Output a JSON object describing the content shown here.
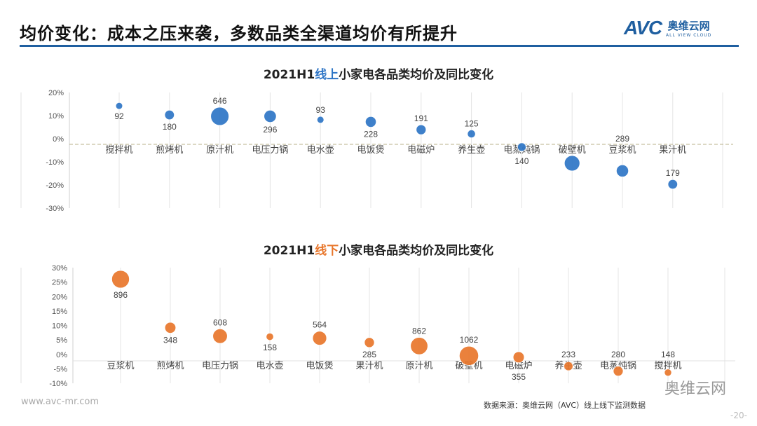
{
  "header": {
    "title": "均价变化：成本之压来袭，多数品类全渠道均价有所提升",
    "logo_mark": "AVC",
    "logo_cn": "奥维云网",
    "logo_en": "ALL VIEW CLOUD"
  },
  "colors": {
    "brand": "#1f5fa0",
    "online": "#2e75c6",
    "offline": "#e8762b"
  },
  "chart_data": [
    {
      "type": "bubble",
      "title_prefix": "2021H1",
      "title_highlight": "线上",
      "title_suffix": "小家电各品类均价及同比变化",
      "ylim": [
        -30,
        20
      ],
      "yticks": [
        "20%",
        "10%",
        "0%",
        "-10%",
        "-20%",
        "-30%"
      ],
      "ytick_values": [
        20,
        10,
        0,
        -10,
        -20,
        -30
      ],
      "grid": true,
      "color": "#2e75c6",
      "points": [
        {
          "category": "搅拌机",
          "yoy": 14.2,
          "price": 92,
          "label": "92",
          "label_pos": "below"
        },
        {
          "category": "煎烤机",
          "yoy": 10.3,
          "price": 180,
          "label": "180",
          "label_pos": "below"
        },
        {
          "category": "原汁机",
          "yoy": 9.7,
          "price": 646,
          "label": "646",
          "label_pos": "above"
        },
        {
          "category": "电压力锅",
          "yoy": 9.7,
          "price": 296,
          "label": "296",
          "label_pos": "below"
        },
        {
          "category": "电水壶",
          "yoy": 8.2,
          "price": 93,
          "label": "93",
          "label_pos": "above"
        },
        {
          "category": "电饭煲",
          "yoy": 7.3,
          "price": 228,
          "label": "228",
          "label_pos": "below"
        },
        {
          "category": "电磁炉",
          "yoy": 3.9,
          "price": 191,
          "label": "191",
          "label_pos": "above"
        },
        {
          "category": "养生壶",
          "yoy": 2.1,
          "price": 125,
          "label": "125",
          "label_pos": "above"
        },
        {
          "category": "电蒸炖锅",
          "yoy": -3.6,
          "price": 140,
          "label": "140",
          "label_pos": "below"
        },
        {
          "category": "破壁机",
          "yoy": -10.6,
          "price": null,
          "label": "",
          "label_pos": "above"
        },
        {
          "category": "豆浆机",
          "yoy": -13.9,
          "price": 289,
          "label": "289",
          "label_pos": "above"
        },
        {
          "category": "果汁机",
          "yoy": -19.7,
          "price": 179,
          "label": "179",
          "label_pos": "above"
        }
      ]
    },
    {
      "type": "bubble",
      "title_prefix": "2021H1",
      "title_highlight": "线下",
      "title_suffix": "小家电各品类均价及同比变化",
      "ylim": [
        -10,
        30
      ],
      "yticks": [
        "30%",
        "25%",
        "20%",
        "15%",
        "10%",
        "5%",
        "0%",
        "-5%",
        "-10%"
      ],
      "ytick_values": [
        30,
        25,
        20,
        15,
        10,
        5,
        0,
        -5,
        -10
      ],
      "grid": true,
      "color": "#e8762b",
      "points": [
        {
          "category": "豆浆机",
          "yoy": 26.0,
          "price": 896,
          "label": "896",
          "label_pos": "below"
        },
        {
          "category": "煎烤机",
          "yoy": 9.2,
          "price": 348,
          "label": "348",
          "label_pos": "below"
        },
        {
          "category": "电压力锅",
          "yoy": 6.3,
          "price": 608,
          "label": "608",
          "label_pos": "above"
        },
        {
          "category": "电水壶",
          "yoy": 6.1,
          "price": 158,
          "label": "158",
          "label_pos": "below"
        },
        {
          "category": "电饭煲",
          "yoy": 5.6,
          "price": 564,
          "label": "564",
          "label_pos": "above"
        },
        {
          "category": "果汁机",
          "yoy": 4.1,
          "price": 285,
          "label": "285",
          "label_pos": "below"
        },
        {
          "category": "原汁机",
          "yoy": 2.9,
          "price": 862,
          "label": "862",
          "label_pos": "above"
        },
        {
          "category": "破壁机",
          "yoy": -0.5,
          "price": 1062,
          "label": "1062",
          "label_pos": "above"
        },
        {
          "category": "电磁炉",
          "yoy": -1.0,
          "price": 355,
          "label": "355",
          "label_pos": "below"
        },
        {
          "category": "养生壶",
          "yoy": -4.1,
          "price": 233,
          "label": "233",
          "label_pos": "above"
        },
        {
          "category": "电蒸炖锅",
          "yoy": -5.8,
          "price": 280,
          "label": "280",
          "label_pos": "above"
        },
        {
          "category": "搅拌机",
          "yoy": -6.3,
          "price": 148,
          "label": "148",
          "label_pos": "above"
        }
      ]
    }
  ],
  "footer": {
    "url": "www.avc-mr.com",
    "source": "数据来源：奥维云网（AVC）线上线下监测数据",
    "page": "-20-",
    "wechat": "奥维云网"
  }
}
